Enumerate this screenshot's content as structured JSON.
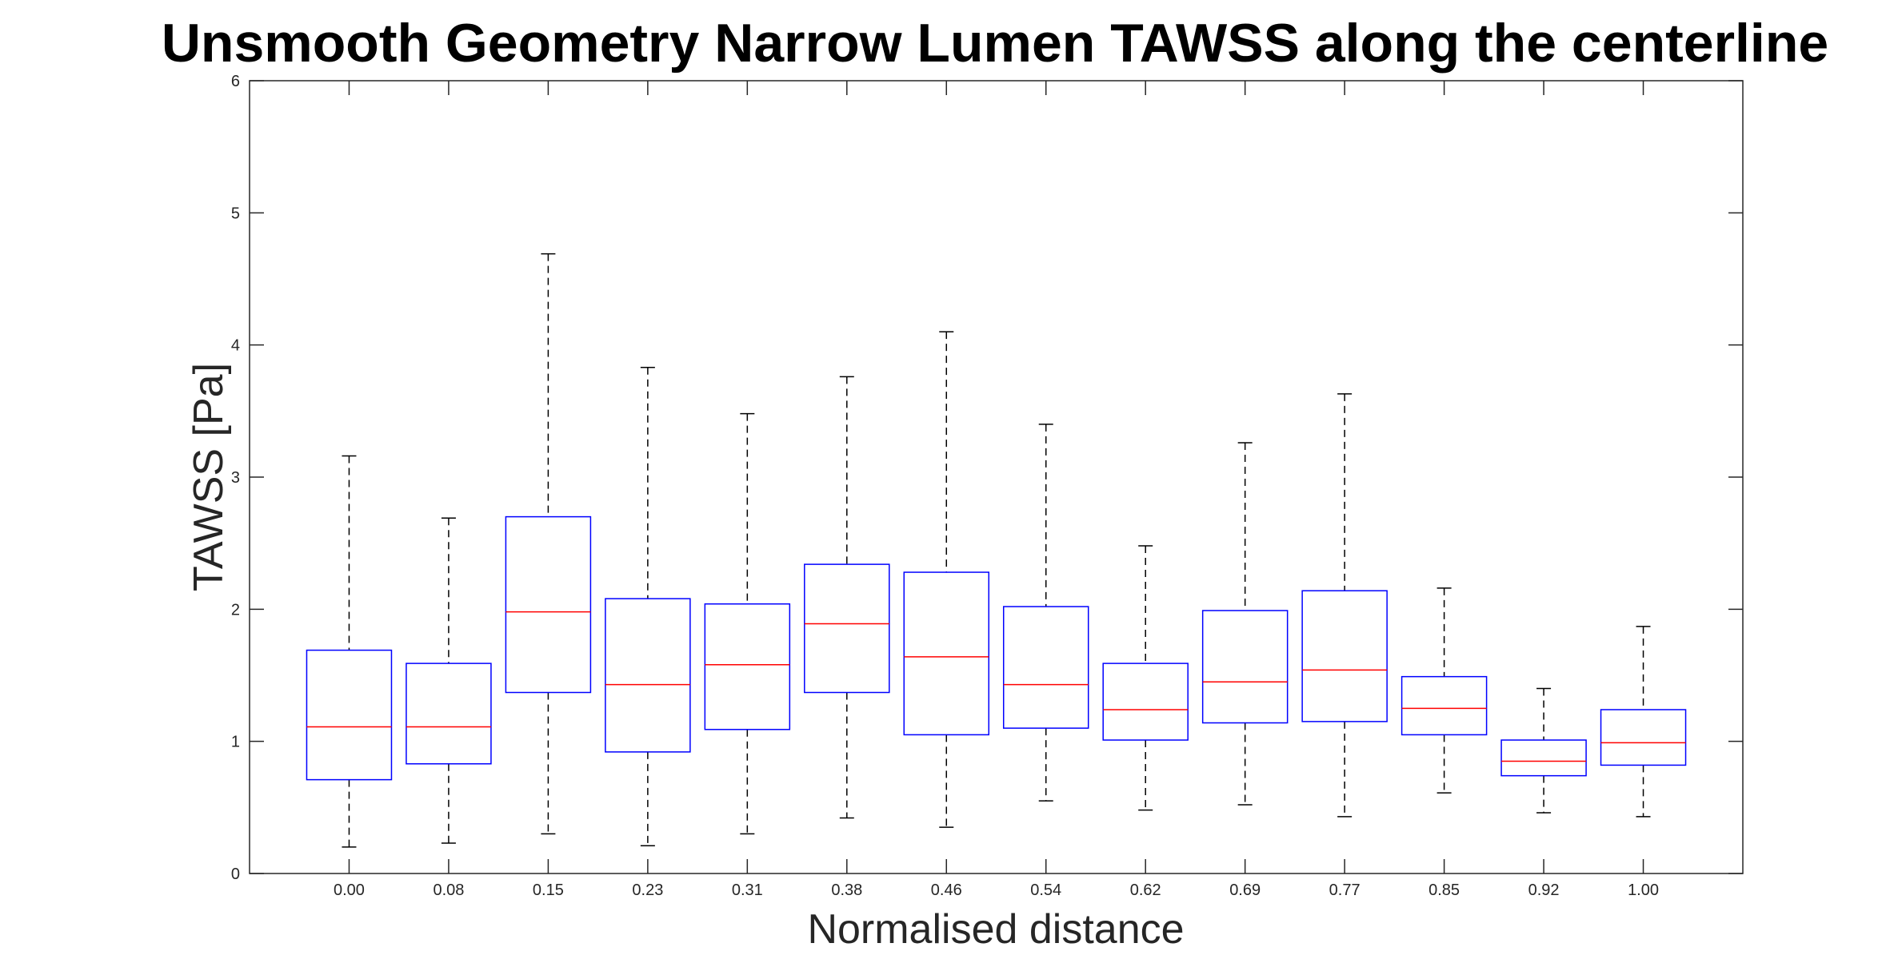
{
  "chart_data": {
    "type": "box",
    "title": "Unsmooth Geometry Narrow Lumen TAWSS along the centerline",
    "xlabel": "Normalised distance",
    "ylabel": "TAWSS [Pa]",
    "ylim": [
      0,
      6
    ],
    "yticks": [
      0,
      1,
      2,
      3,
      4,
      5,
      6
    ],
    "categories": [
      "0.00",
      "0.08",
      "0.15",
      "0.23",
      "0.31",
      "0.38",
      "0.46",
      "0.54",
      "0.62",
      "0.69",
      "0.77",
      "0.85",
      "0.92",
      "1.00"
    ],
    "boxes": [
      {
        "min": 0.2,
        "q1": 0.71,
        "median": 1.11,
        "q3": 1.69,
        "max": 3.16
      },
      {
        "min": 0.23,
        "q1": 0.83,
        "median": 1.11,
        "q3": 1.59,
        "max": 2.69
      },
      {
        "min": 0.3,
        "q1": 1.37,
        "median": 1.98,
        "q3": 2.7,
        "max": 4.69
      },
      {
        "min": 0.21,
        "q1": 0.92,
        "median": 1.43,
        "q3": 2.08,
        "max": 3.83
      },
      {
        "min": 0.3,
        "q1": 1.09,
        "median": 1.58,
        "q3": 2.04,
        "max": 3.48
      },
      {
        "min": 0.42,
        "q1": 1.37,
        "median": 1.89,
        "q3": 2.34,
        "max": 3.76
      },
      {
        "min": 0.35,
        "q1": 1.05,
        "median": 1.64,
        "q3": 2.28,
        "max": 4.1
      },
      {
        "min": 0.55,
        "q1": 1.1,
        "median": 1.43,
        "q3": 2.02,
        "max": 3.4
      },
      {
        "min": 0.48,
        "q1": 1.01,
        "median": 1.24,
        "q3": 1.59,
        "max": 2.48
      },
      {
        "min": 0.52,
        "q1": 1.14,
        "median": 1.45,
        "q3": 1.99,
        "max": 3.26
      },
      {
        "min": 0.43,
        "q1": 1.15,
        "median": 1.54,
        "q3": 2.14,
        "max": 3.63
      },
      {
        "min": 0.61,
        "q1": 1.05,
        "median": 1.25,
        "q3": 1.49,
        "max": 2.16
      },
      {
        "min": 0.46,
        "q1": 0.74,
        "median": 0.85,
        "q3": 1.01,
        "max": 1.4
      },
      {
        "min": 0.43,
        "q1": 0.82,
        "median": 0.99,
        "q3": 1.24,
        "max": 1.87
      }
    ],
    "grid": false,
    "legend": "none",
    "colors": {
      "box": "#0000ff",
      "median": "#ff0000",
      "whisker": "#000000",
      "axis": "#262626"
    }
  }
}
